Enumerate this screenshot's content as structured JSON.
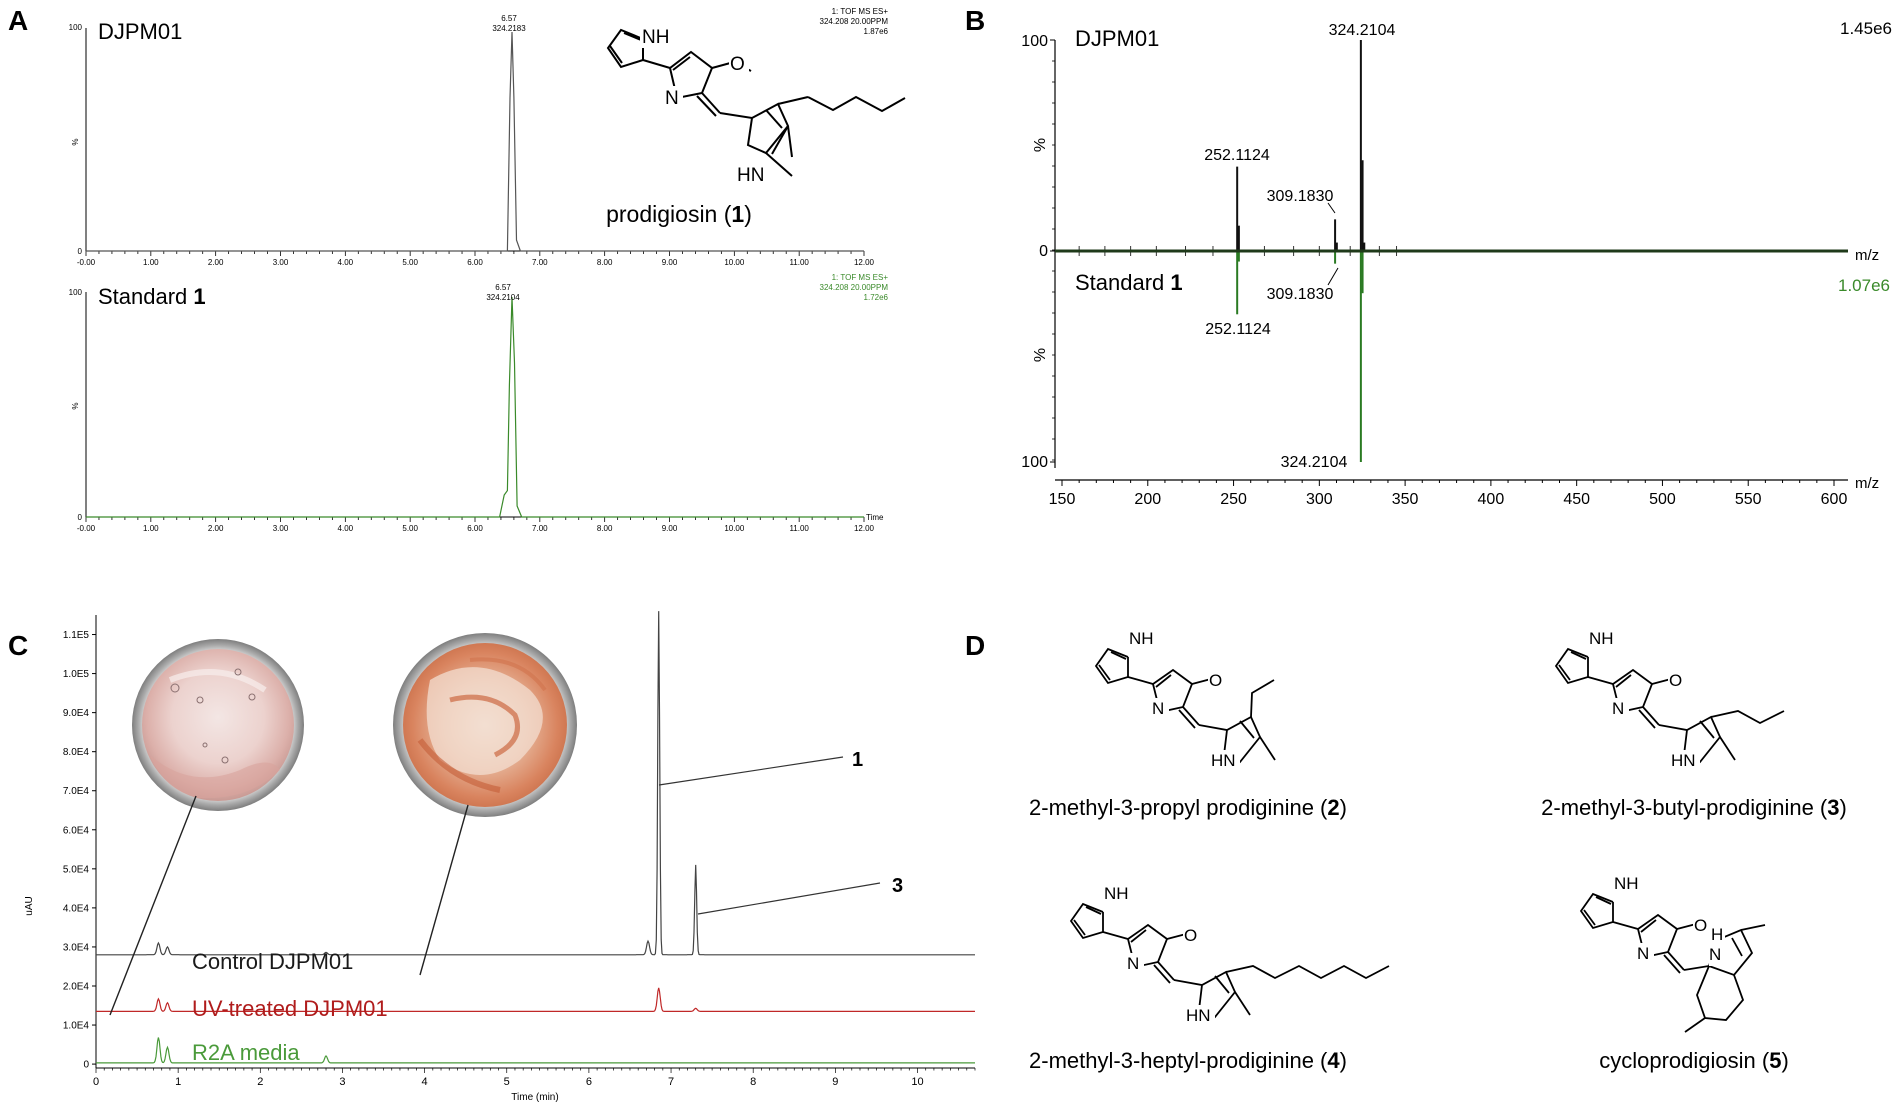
{
  "panels": {
    "A": {
      "letter": "A",
      "sample_label": "DJPM01",
      "standard_label_prefix": "Standard ",
      "standard_label_bold": "1",
      "compound_caption_prefix": "prodigiosin (",
      "compound_caption_bold": "1",
      "compound_caption_suffix": ")",
      "top_meta": [
        "1: TOF MS ES+",
        "324.208 20.00PPM",
        "1.87e6"
      ],
      "bottom_meta": [
        "1: TOF MS ES+",
        "324.208 20.00PPM",
        "1.72e6"
      ],
      "bottom_meta_color": "#3a8a2a",
      "time_axis_title": "Time",
      "ytick_top": "100",
      "ytick_mid": "%",
      "ytick_zero": "0"
    },
    "B": {
      "letter": "B",
      "sample_label": "DJPM01",
      "standard_label_prefix": "Standard ",
      "standard_label_bold": "1",
      "top_intensity": "1.45e6",
      "bottom_intensity": "1.07e6",
      "bottom_intensity_color": "#3a8a2a",
      "mz_label": "m/z",
      "ylabel": "%"
    },
    "C": {
      "letter": "C",
      "ylabel": "uAU",
      "xlabel": "Time (min)",
      "trace_labels": [
        {
          "text": "Control DJPM01",
          "color": "#1a1a1a"
        },
        {
          "text": "UV-treated DJPM01",
          "color": "#b01c1c"
        },
        {
          "text": "R2A media",
          "color": "#4a9a3a"
        }
      ],
      "peak_callouts": [
        "1",
        "3"
      ]
    },
    "D": {
      "letter": "D",
      "compounds": [
        {
          "prefix": "2-methyl-3-propyl prodiginine (",
          "bold": "2",
          "suffix": ")"
        },
        {
          "prefix": "2-methyl-3-butyl-prodiginine (",
          "bold": "3",
          "suffix": ")"
        },
        {
          "prefix": "2-methyl-3-heptyl-prodiginine (",
          "bold": "4",
          "suffix": ")"
        },
        {
          "prefix": "cycloprodigiosin (",
          "bold": "5",
          "suffix": ")"
        }
      ],
      "atom_labels": {
        "nh": "NH",
        "n": "N",
        "hn": "HN",
        "h": "H",
        "o": "O"
      }
    }
  },
  "chart_data": [
    {
      "id": "A-top",
      "type": "line",
      "title": "DJPM01",
      "xlabel": "Time",
      "xlim": [
        0,
        12
      ],
      "ylim": [
        0,
        100
      ],
      "xticks": [
        "-0.00",
        "1.00",
        "2.00",
        "3.00",
        "4.00",
        "5.00",
        "6.00",
        "7.00",
        "8.00",
        "9.00",
        "10.00",
        "11.00",
        "12.00"
      ],
      "series": [
        {
          "x": [
            0,
            6.5,
            6.54,
            6.57,
            6.6,
            6.64,
            6.7,
            12
          ],
          "y": [
            0,
            0,
            70,
            100,
            70,
            5,
            0,
            0
          ],
          "color": "#555555"
        }
      ],
      "peak_label": {
        "time": "6.57",
        "mass": "324.2183"
      }
    },
    {
      "id": "A-bottom",
      "type": "line",
      "title": "Standard 1",
      "xlabel": "Time",
      "xlim": [
        0,
        12
      ],
      "ylim": [
        0,
        100
      ],
      "xticks": [
        "-0.00",
        "1.00",
        "2.00",
        "3.00",
        "4.00",
        "5.00",
        "6.00",
        "7.00",
        "8.00",
        "9.00",
        "10.00",
        "11.00",
        "12.00"
      ],
      "series": [
        {
          "x": [
            0,
            6.38,
            6.45,
            6.5,
            6.53,
            6.57,
            6.61,
            6.65,
            6.72,
            12
          ],
          "y": [
            0,
            0,
            10,
            12,
            60,
            100,
            70,
            5,
            0,
            0
          ],
          "color": "#3a8a2a"
        }
      ],
      "peak_label": {
        "time": "6.57",
        "mass": "324.2104"
      }
    },
    {
      "id": "B",
      "type": "bar",
      "title": "",
      "xlabel": "m/z",
      "xlim": [
        150,
        600
      ],
      "ylim": [
        -100,
        100
      ],
      "xticks": [
        "150",
        "200",
        "250",
        "300",
        "350",
        "400",
        "450",
        "500",
        "550",
        "600"
      ],
      "yticks_top": [
        "100",
        "0"
      ],
      "yticks_bottom": [
        "0",
        "100"
      ],
      "series": [
        {
          "name": "DJPM01",
          "color": "#111111",
          "peaks": [
            [
              252.1124,
              40
            ],
            [
              253.1,
              12
            ],
            [
              309.183,
              15
            ],
            [
              310.2,
              4
            ],
            [
              324.2104,
              100
            ],
            [
              325.2,
              43
            ],
            [
              326.2,
              4
            ]
          ]
        },
        {
          "name": "Standard 1",
          "color": "#2a7a22",
          "peaks": [
            [
              252.1124,
              30
            ],
            [
              253.1,
              5
            ],
            [
              309.183,
              6
            ],
            [
              324.2104,
              100
            ],
            [
              325.2,
              20
            ]
          ]
        }
      ],
      "annotations": [
        "324.2104",
        "252.1124",
        "309.1830",
        "309.1830",
        "252.1124",
        "324.2104"
      ]
    },
    {
      "id": "C",
      "type": "line",
      "title": "",
      "xlabel": "Time (min)",
      "ylabel": "uAU",
      "xlim": [
        0,
        10.7
      ],
      "ylim": [
        -1000,
        115000
      ],
      "xticks": [
        "0",
        "1",
        "2",
        "3",
        "4",
        "5",
        "6",
        "7",
        "8",
        "9",
        "10"
      ],
      "yticks": [
        "0",
        "1.0E4",
        "2.0E4",
        "3.0E4",
        "4.0E4",
        "5.0E4",
        "6.0E4",
        "7.0E4",
        "8.0E4",
        "9.0E4",
        "1.0E5",
        "1.1E5"
      ],
      "series": [
        {
          "name": "Control DJPM01",
          "color": "#444444",
          "baseline": 28000,
          "peaks": [
            [
              0.76,
              3000
            ],
            [
              0.87,
              2000
            ],
            [
              2.8,
              600
            ],
            [
              6.72,
              3500
            ],
            [
              6.85,
              88000
            ],
            [
              7.3,
              23000
            ]
          ]
        },
        {
          "name": "UV-treated DJPM01",
          "color": "#c02828",
          "baseline": 13500,
          "peaks": [
            [
              0.76,
              3200
            ],
            [
              0.87,
              2200
            ],
            [
              6.85,
              6000
            ],
            [
              7.3,
              800
            ]
          ]
        },
        {
          "name": "R2A media",
          "color": "#4a9a3a",
          "baseline": 300,
          "peaks": [
            [
              0.76,
              6500
            ],
            [
              0.87,
              4000
            ],
            [
              2.8,
              1800
            ]
          ]
        }
      ]
    }
  ]
}
